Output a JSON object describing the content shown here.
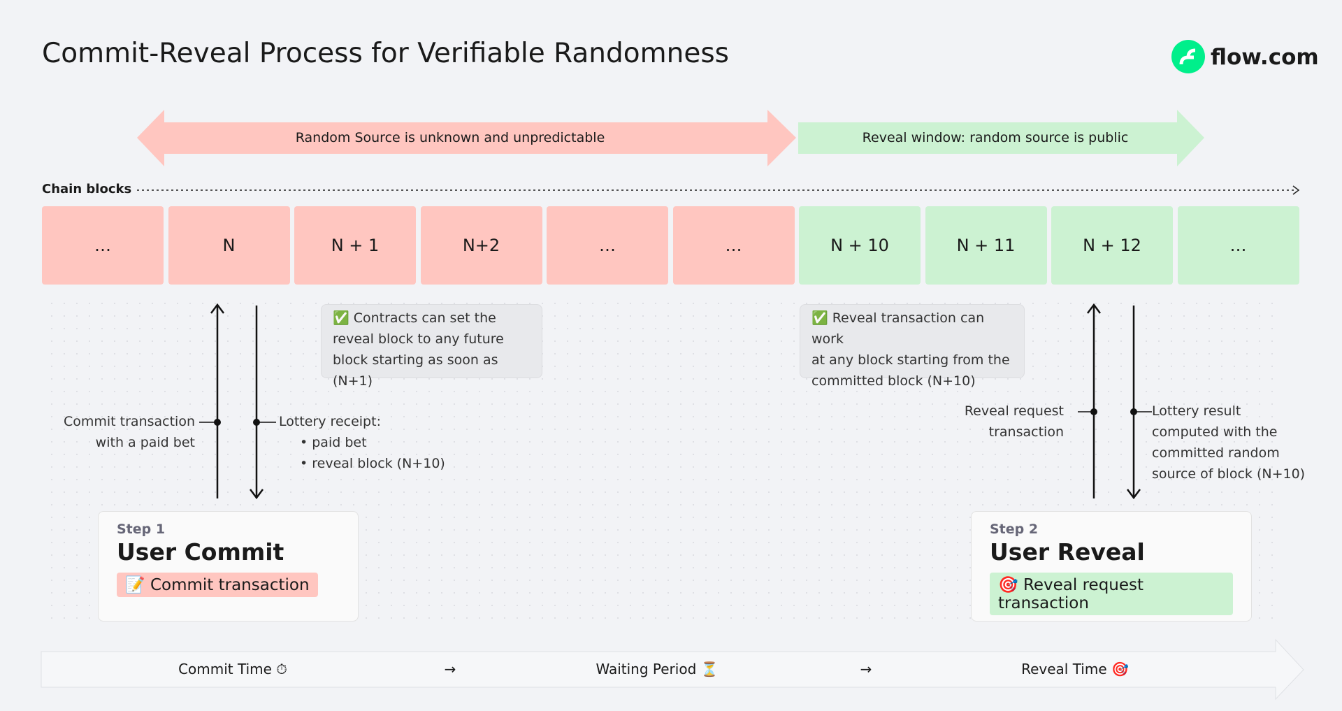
{
  "header": {
    "title": "Commit-Reveal Process for Verifiable Randomness",
    "logo": "flow.com"
  },
  "chain_label": "Chain blocks",
  "phases": [
    {
      "label": "Random Source is unknown and unpredictable",
      "blocks": [
        "…",
        "N",
        "N + 1",
        "N+2",
        "…",
        "…"
      ]
    },
    {
      "label": "Reveal window: random source is public",
      "blocks": [
        "N + 10",
        "N + 11",
        "N + 12",
        "…"
      ]
    }
  ],
  "notes": [
    {
      "lines": [
        "✅ Contracts can set the",
        "reveal block to any future",
        "block starting as soon as (N+1)"
      ]
    },
    {
      "lines": [
        "✅ Reveal transaction can work",
        "at any block starting from the",
        "committed block (N+10)"
      ]
    }
  ],
  "commit_flow": {
    "up_label": [
      "Commit transaction",
      "with a paid bet"
    ],
    "down_label": "Lottery receipt:",
    "down_items": [
      "paid bet",
      "reveal block (N+10)"
    ]
  },
  "reveal_flow": {
    "up_label": [
      "Reveal request",
      "transaction"
    ],
    "down_label": [
      "Lottery result",
      "computed with the",
      "committed random",
      "source of block (N+10)"
    ]
  },
  "steps": [
    {
      "step": "Step 1",
      "title": "User Commit",
      "action": "📝 Commit transaction"
    },
    {
      "step": "Step 2",
      "title": "User Reveal",
      "action": "🎯 Reveal request transaction"
    }
  ],
  "timeline": [
    "Commit Time ⏱",
    "→",
    "Waiting Period ⏳",
    "→",
    "Reveal Time 🎯"
  ]
}
